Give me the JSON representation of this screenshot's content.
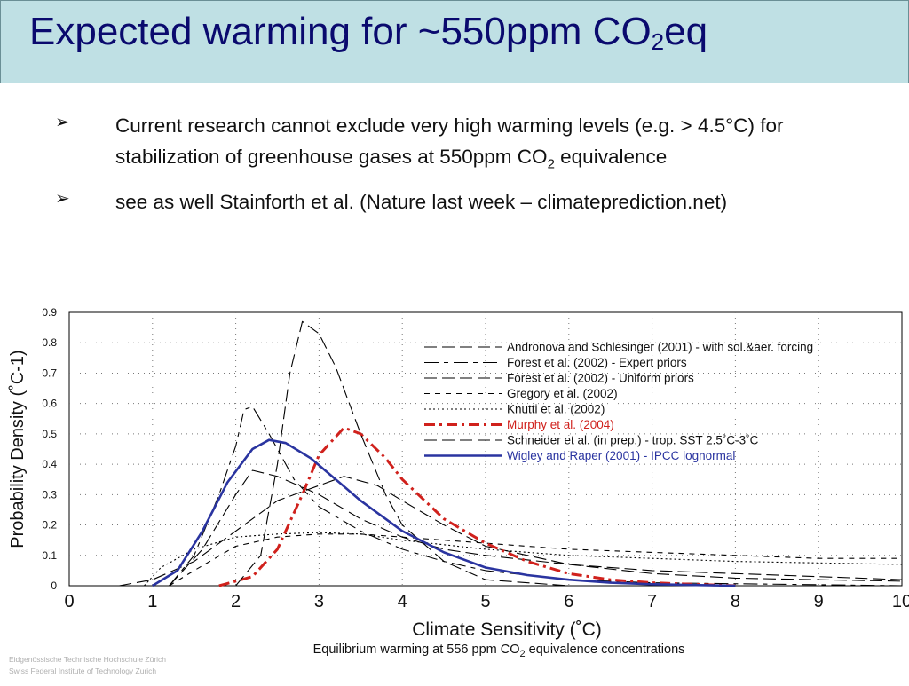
{
  "slide": {
    "title_main": "Expected warming for ~550ppm CO",
    "title_sub": "2",
    "title_tail": "eq",
    "bullets": [
      {
        "icon": "arrow-bullet-icon",
        "text_main": "Current research cannot exclude very high warming levels (e.g. > 4.5°C) for stabilization of greenhouse gases at 550ppm CO",
        "text_sub": "2",
        "text_tail": " equivalence"
      },
      {
        "icon": "arrow-bullet-icon",
        "text_main": "see as well Stainforth et al. (Nature last week – climateprediction.net)",
        "text_sub": "",
        "text_tail": ""
      }
    ],
    "watermark": [
      "Eidgenössische Technische Hochschule Zürich",
      "Swiss Federal Institute of Technology Zurich"
    ]
  },
  "chart_data": {
    "type": "line",
    "xlabel": "Climate Sensitivity (˚C)",
    "ylabel": "Probability Density (˚C-1)",
    "caption": "Equilibrium warming at 556 ppm CO2 equivalence concentrations",
    "xlim": [
      0,
      10
    ],
    "ylim": [
      0,
      0.9
    ],
    "xticks": [
      "0",
      "1",
      "2",
      "3",
      "4",
      "5",
      "6",
      "7",
      "8",
      "9",
      "10"
    ],
    "yticks": [
      "0",
      "0.1",
      "0.2",
      "0.3",
      "0.4",
      "0.5",
      "0.6",
      "0.7",
      "0.8",
      "0.9"
    ],
    "grid": true,
    "legend_position": "top-right",
    "series": [
      {
        "name": "Andronova and Schlesinger (2001) - with sol.&aer. forcing",
        "color": "#000000",
        "dash": "long",
        "points": [
          [
            0.6,
            0
          ],
          [
            1,
            0.02
          ],
          [
            1.5,
            0.08
          ],
          [
            2,
            0.18
          ],
          [
            2.5,
            0.28
          ],
          [
            3,
            0.33
          ],
          [
            3.3,
            0.36
          ],
          [
            3.7,
            0.33
          ],
          [
            4,
            0.28
          ],
          [
            4.5,
            0.2
          ],
          [
            5,
            0.13
          ],
          [
            6,
            0.07
          ],
          [
            7,
            0.04
          ],
          [
            8,
            0.025
          ],
          [
            9,
            0.02
          ],
          [
            10,
            0.015
          ]
        ]
      },
      {
        "name": "Forest et al. (2002) - Expert priors",
        "color": "#000000",
        "dash": "long-short",
        "points": [
          [
            1.2,
            0
          ],
          [
            1.5,
            0.1
          ],
          [
            1.8,
            0.3
          ],
          [
            2,
            0.46
          ],
          [
            2.1,
            0.58
          ],
          [
            2.2,
            0.59
          ],
          [
            2.4,
            0.5
          ],
          [
            2.7,
            0.35
          ],
          [
            3,
            0.26
          ],
          [
            3.5,
            0.18
          ],
          [
            4,
            0.12
          ],
          [
            4.5,
            0.08
          ],
          [
            5,
            0.05
          ],
          [
            6,
            0.02
          ],
          [
            7,
            0.01
          ],
          [
            10,
            0
          ]
        ]
      },
      {
        "name": "Forest et al. (2002) - Uniform priors",
        "color": "#000000",
        "dash": "long",
        "points": [
          [
            1.2,
            0
          ],
          [
            1.6,
            0.12
          ],
          [
            2,
            0.3
          ],
          [
            2.2,
            0.38
          ],
          [
            2.5,
            0.36
          ],
          [
            3,
            0.3
          ],
          [
            3.5,
            0.22
          ],
          [
            4,
            0.16
          ],
          [
            4.5,
            0.12
          ],
          [
            5,
            0.1
          ],
          [
            6,
            0.07
          ],
          [
            7,
            0.05
          ],
          [
            8,
            0.04
          ],
          [
            9,
            0.03
          ],
          [
            10,
            0.02
          ]
        ]
      },
      {
        "name": "Gregory et al. (2002)",
        "color": "#000000",
        "dash": "short",
        "points": [
          [
            1.2,
            0
          ],
          [
            1.5,
            0.05
          ],
          [
            2,
            0.13
          ],
          [
            2.5,
            0.16
          ],
          [
            3,
            0.17
          ],
          [
            3.5,
            0.17
          ],
          [
            4,
            0.16
          ],
          [
            5,
            0.14
          ],
          [
            6,
            0.12
          ],
          [
            7,
            0.11
          ],
          [
            8,
            0.1
          ],
          [
            9,
            0.09
          ],
          [
            10,
            0.09
          ]
        ]
      },
      {
        "name": "Knutti et al. (2002)",
        "color": "#000000",
        "dash": "dotted",
        "points": [
          [
            0.9,
            0
          ],
          [
            1.1,
            0.06
          ],
          [
            1.5,
            0.12
          ],
          [
            2,
            0.16
          ],
          [
            2.5,
            0.17
          ],
          [
            3,
            0.175
          ],
          [
            3.5,
            0.17
          ],
          [
            4,
            0.15
          ],
          [
            5,
            0.12
          ],
          [
            6,
            0.1
          ],
          [
            7,
            0.09
          ],
          [
            8,
            0.08
          ],
          [
            9,
            0.075
          ],
          [
            10,
            0.07
          ]
        ]
      },
      {
        "name": "Murphy et al. (2004)",
        "color": "#d0211c",
        "dash": "dash-dot",
        "points": [
          [
            1.8,
            0
          ],
          [
            2.2,
            0.03
          ],
          [
            2.5,
            0.12
          ],
          [
            2.8,
            0.3
          ],
          [
            3,
            0.43
          ],
          [
            3.3,
            0.52
          ],
          [
            3.5,
            0.5
          ],
          [
            3.8,
            0.42
          ],
          [
            4,
            0.35
          ],
          [
            4.5,
            0.22
          ],
          [
            5,
            0.14
          ],
          [
            5.5,
            0.08
          ],
          [
            6,
            0.04
          ],
          [
            6.5,
            0.02
          ],
          [
            7,
            0.01
          ],
          [
            8,
            0
          ]
        ]
      },
      {
        "name": "Schneider et al. (in prep.) - trop. SST 2.5˚C-3˚C",
        "color": "#000000",
        "dash": "long",
        "points": [
          [
            2,
            0
          ],
          [
            2.3,
            0.1
          ],
          [
            2.5,
            0.4
          ],
          [
            2.65,
            0.7
          ],
          [
            2.8,
            0.87
          ],
          [
            3,
            0.83
          ],
          [
            3.2,
            0.72
          ],
          [
            3.5,
            0.5
          ],
          [
            3.8,
            0.3
          ],
          [
            4,
            0.2
          ],
          [
            4.5,
            0.08
          ],
          [
            5,
            0.02
          ],
          [
            6,
            0
          ]
        ]
      },
      {
        "name": "Wigley and Raper (2001) - IPCC lognormal",
        "color": "#2a34a0",
        "dash": "solid",
        "points": [
          [
            1,
            0
          ],
          [
            1.3,
            0.05
          ],
          [
            1.6,
            0.18
          ],
          [
            1.9,
            0.34
          ],
          [
            2.2,
            0.45
          ],
          [
            2.4,
            0.48
          ],
          [
            2.6,
            0.47
          ],
          [
            2.9,
            0.42
          ],
          [
            3.2,
            0.35
          ],
          [
            3.5,
            0.28
          ],
          [
            4,
            0.18
          ],
          [
            4.5,
            0.11
          ],
          [
            5,
            0.06
          ],
          [
            5.5,
            0.035
          ],
          [
            6,
            0.02
          ],
          [
            6.5,
            0.01
          ],
          [
            7,
            0.005
          ],
          [
            8,
            0
          ]
        ]
      }
    ]
  }
}
